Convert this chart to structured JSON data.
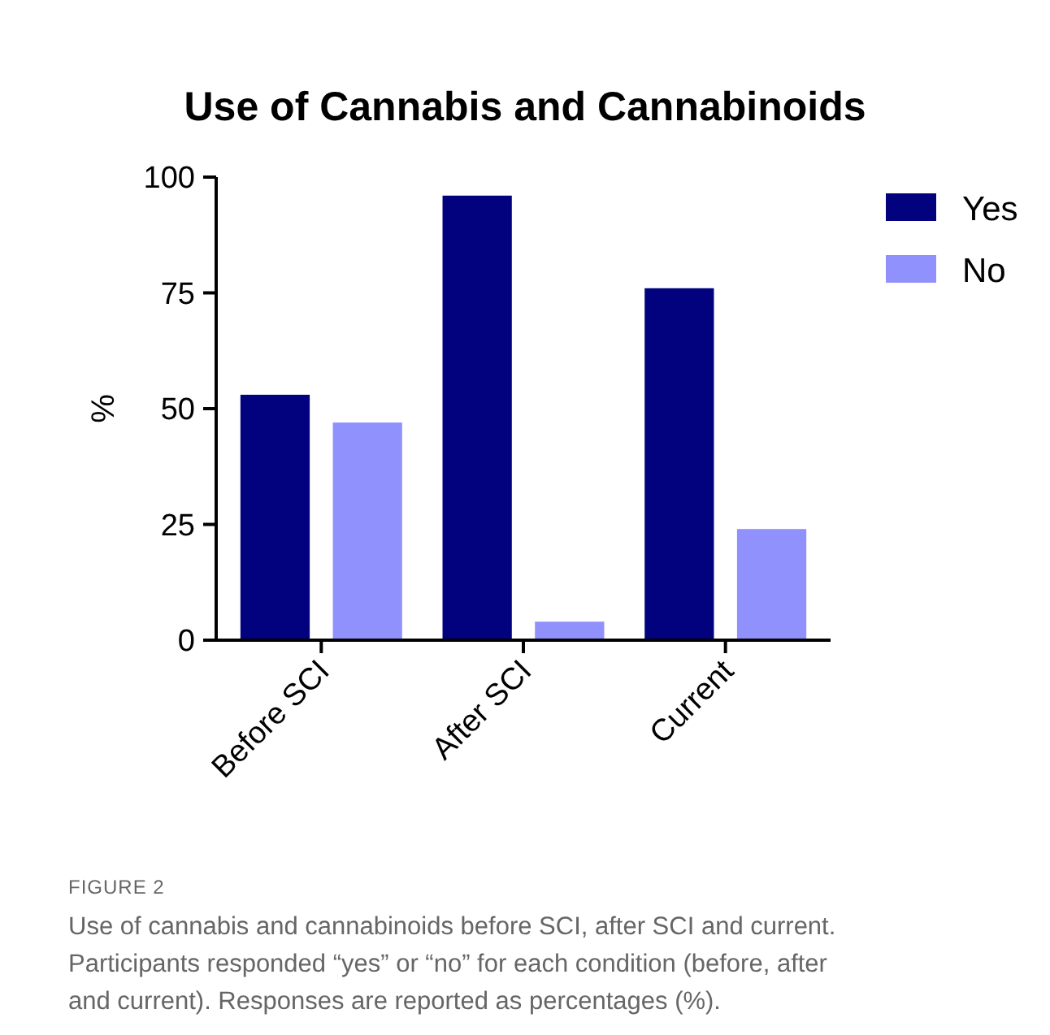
{
  "chart_data": {
    "type": "bar",
    "title": "Use of Cannabis and Cannabinoids",
    "ylabel": "%",
    "categories": [
      "Before SCI",
      "After SCI",
      "Current"
    ],
    "series": [
      {
        "name": "Yes",
        "color": "#02027e",
        "values": [
          53,
          96,
          76
        ]
      },
      {
        "name": "No",
        "color": "#9191fd",
        "values": [
          47,
          4,
          24
        ]
      }
    ],
    "ylim": [
      0,
      100
    ],
    "yticks": [
      0,
      25,
      50,
      75,
      100
    ],
    "grid": false,
    "legend": "top right",
    "annotations": [
      "FIGURE 2",
      "Use of cannabis and cannabinoids before SCI, after SCI and current. Participants responded “yes” or “no” for each condition (before, after and current). Responses are reported as percentages (%)."
    ]
  }
}
